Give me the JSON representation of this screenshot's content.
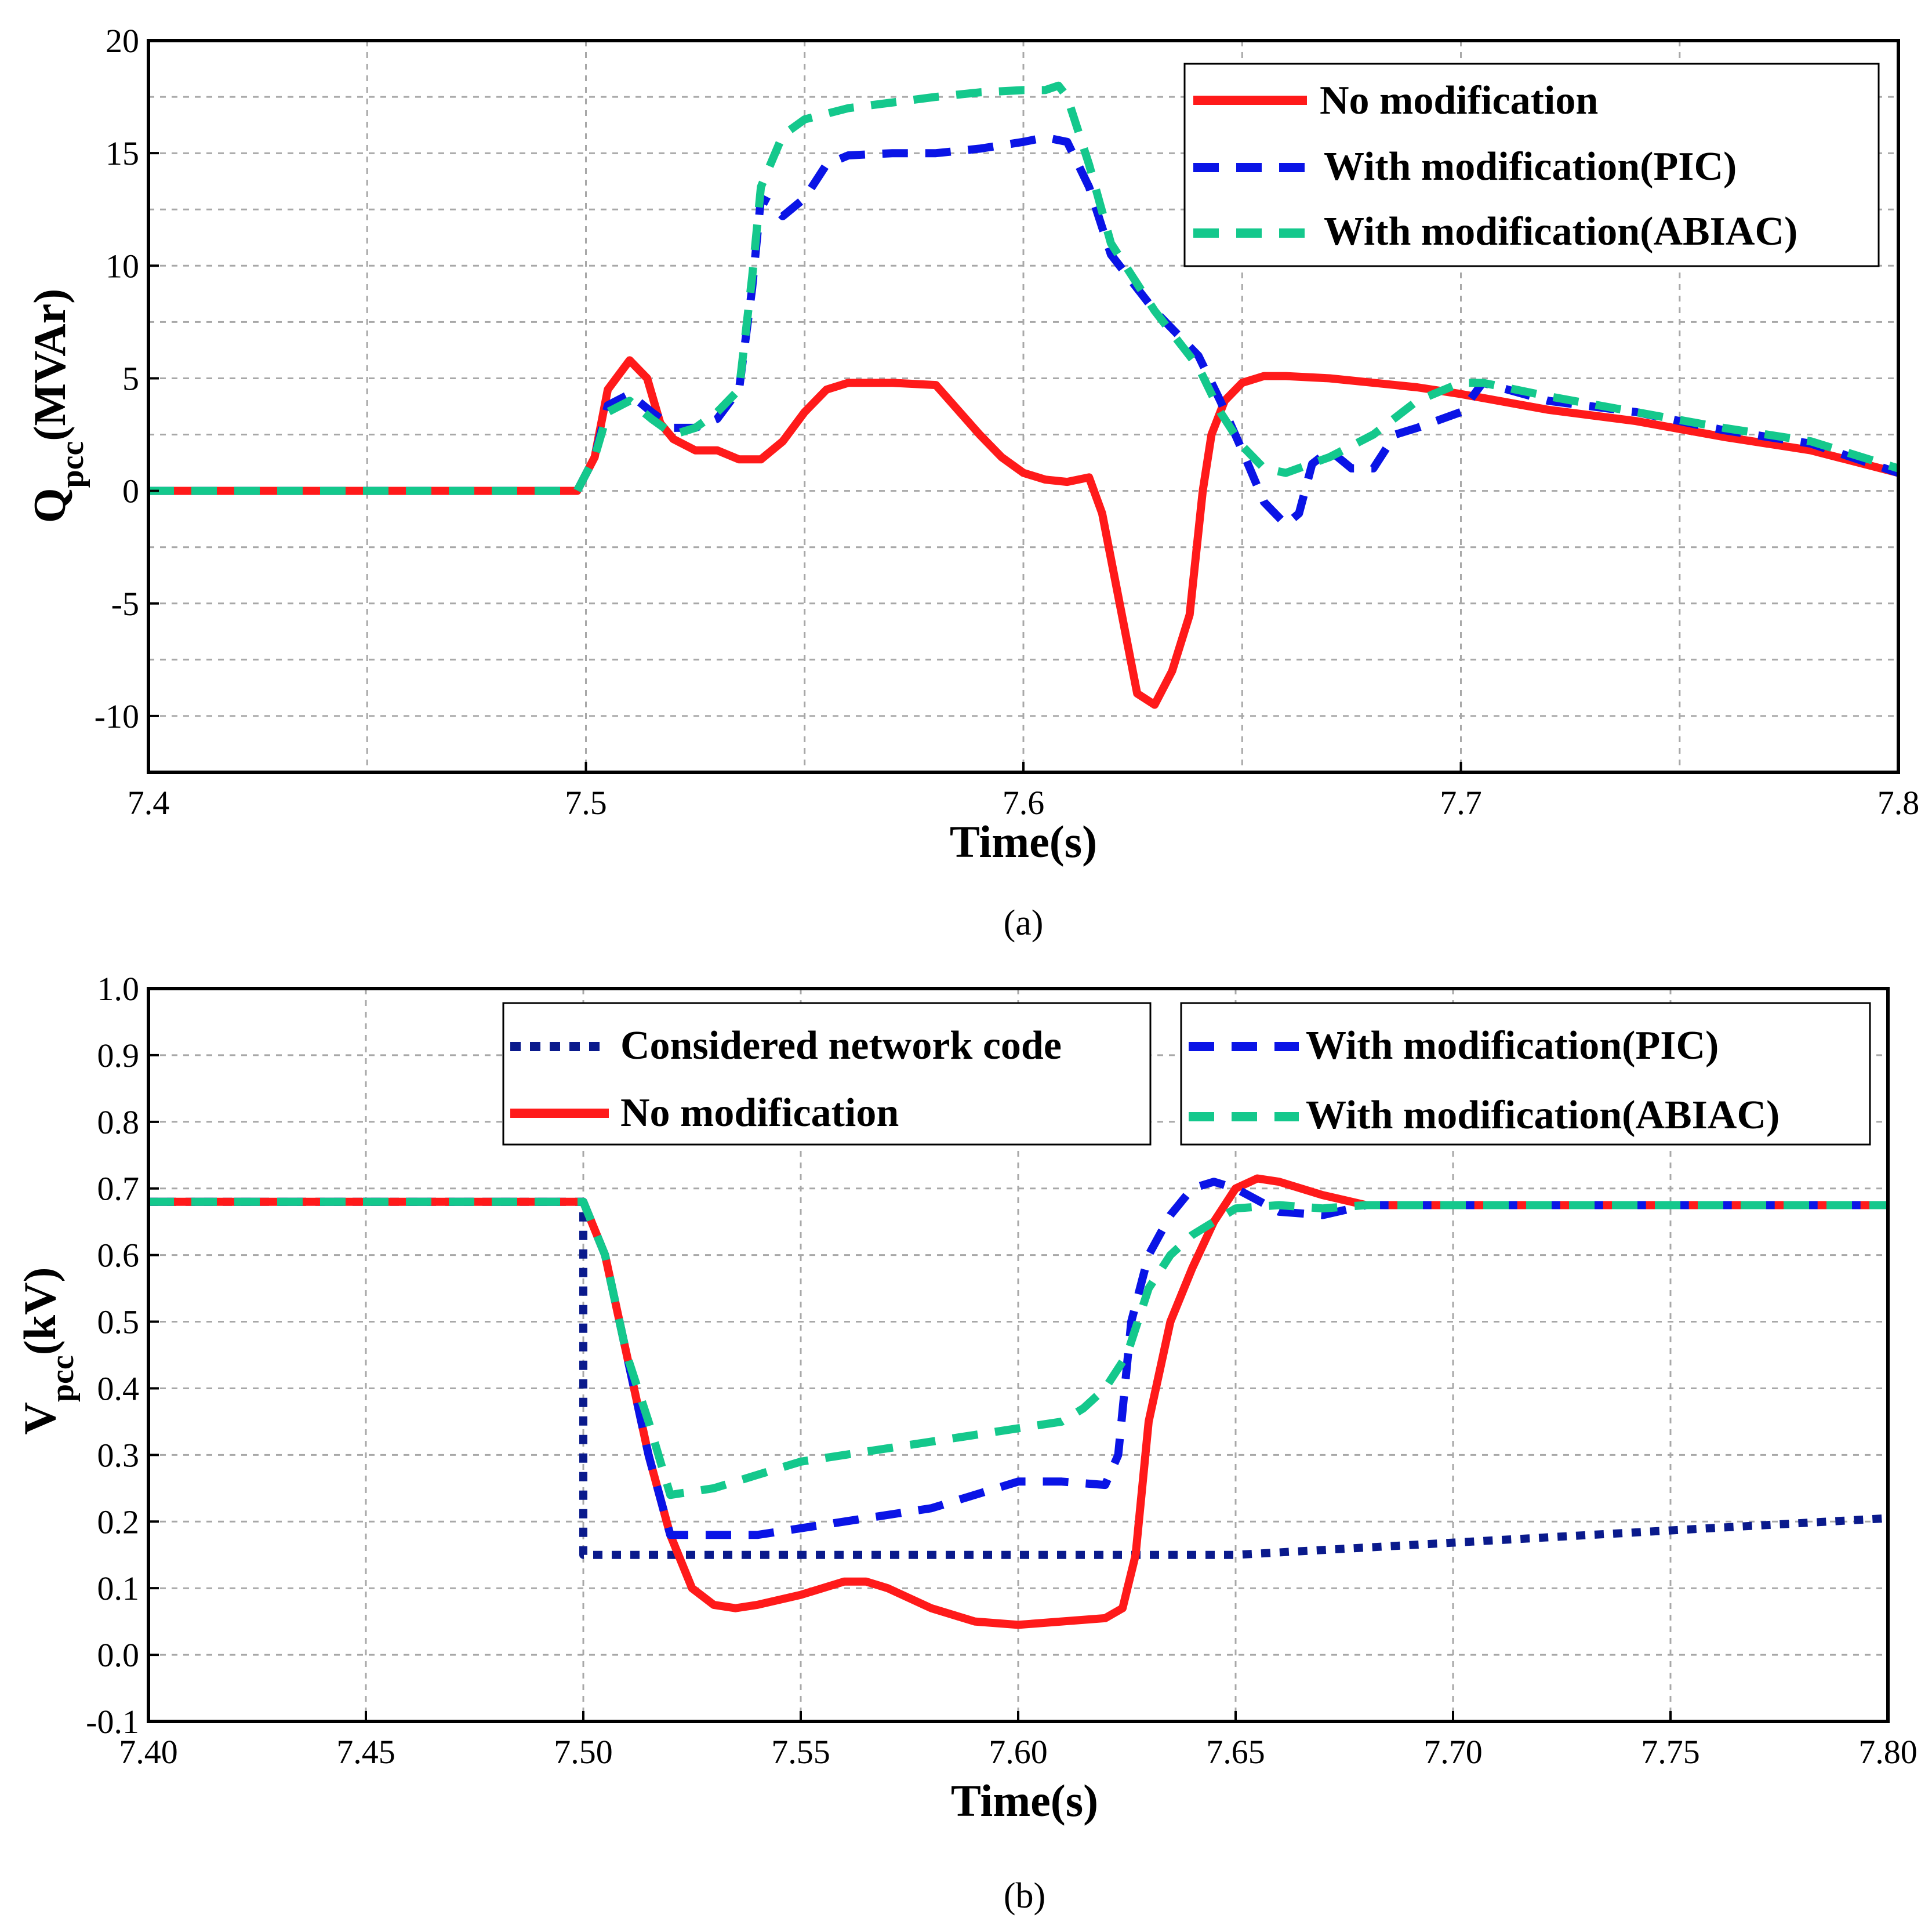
{
  "chart_data": [
    {
      "type": "line",
      "caption": "(a)",
      "xlabel": "Time(s)",
      "ylabel_main": "Q",
      "ylabel_sub": "pcc",
      "ylabel_unit": "(MVAr)",
      "xlim": [
        7.4,
        7.8
      ],
      "ylim": [
        -12.5,
        20
      ],
      "xticks": [
        7.4,
        7.5,
        7.6,
        7.7,
        7.8
      ],
      "xtick_labels": [
        "7.4",
        "7.5",
        "7.6",
        "7.7",
        "7.8"
      ],
      "yticks": [
        -10,
        -5,
        0,
        5,
        10,
        15,
        20
      ],
      "ytick_labels": [
        "-10",
        "-5",
        "0",
        "5",
        "10",
        "15",
        "20"
      ],
      "grid_x": [
        7.45,
        7.5,
        7.55,
        7.6,
        7.65,
        7.7,
        7.75
      ],
      "grid_y": [
        -10,
        -7.5,
        -5,
        -2.5,
        0,
        2.5,
        5,
        7.5,
        10,
        12.5,
        15,
        17.5
      ],
      "legend_position": "top-right",
      "series": [
        {
          "name": "No modification",
          "color": "#ff1a1a",
          "style": "solid",
          "x": [
            7.4,
            7.498,
            7.502,
            7.505,
            7.51,
            7.514,
            7.517,
            7.52,
            7.525,
            7.53,
            7.535,
            7.54,
            7.545,
            7.55,
            7.555,
            7.56,
            7.565,
            7.57,
            7.58,
            7.59,
            7.595,
            7.6,
            7.605,
            7.61,
            7.615,
            7.618,
            7.622,
            7.626,
            7.63,
            7.634,
            7.638,
            7.641,
            7.643,
            7.646,
            7.65,
            7.655,
            7.66,
            7.67,
            7.68,
            7.69,
            7.7,
            7.72,
            7.74,
            7.76,
            7.78,
            7.8
          ],
          "y": [
            0,
            0,
            1.5,
            4.5,
            5.8,
            5.0,
            3.0,
            2.3,
            1.8,
            1.8,
            1.4,
            1.4,
            2.2,
            3.5,
            4.5,
            4.8,
            4.8,
            4.8,
            4.7,
            2.5,
            1.5,
            0.8,
            0.5,
            0.4,
            0.6,
            -1.0,
            -5.0,
            -9.0,
            -9.5,
            -8.0,
            -5.5,
            0.0,
            2.5,
            4.0,
            4.8,
            5.1,
            5.1,
            5.0,
            4.8,
            4.6,
            4.3,
            3.6,
            3.1,
            2.4,
            1.8,
            0.8
          ]
        },
        {
          "name": "With modification(PIC)",
          "color": "#0a14e6",
          "style": "dashed",
          "x": [
            7.4,
            7.498,
            7.502,
            7.505,
            7.51,
            7.515,
            7.52,
            7.525,
            7.53,
            7.535,
            7.538,
            7.54,
            7.542,
            7.545,
            7.55,
            7.555,
            7.56,
            7.57,
            7.58,
            7.59,
            7.6,
            7.605,
            7.61,
            7.615,
            7.62,
            7.63,
            7.64,
            7.645,
            7.65,
            7.655,
            7.66,
            7.663,
            7.666,
            7.67,
            7.675,
            7.68,
            7.685,
            7.69,
            7.7,
            7.705,
            7.72,
            7.74,
            7.76,
            7.78,
            7.8
          ],
          "y": [
            0,
            0,
            1.5,
            3.8,
            4.3,
            3.5,
            2.8,
            2.8,
            3.2,
            4.5,
            9.0,
            13.0,
            12.8,
            12.2,
            13.0,
            14.5,
            14.9,
            15.0,
            15.0,
            15.2,
            15.5,
            15.7,
            15.5,
            13.5,
            10.5,
            8.0,
            6.0,
            4.0,
            1.8,
            -0.5,
            -1.5,
            -1.0,
            1.2,
            1.8,
            1.0,
            1.0,
            2.5,
            2.8,
            3.5,
            4.8,
            4.0,
            3.5,
            2.7,
            2.1,
            0.8
          ]
        },
        {
          "name": "With modification(ABIAC)",
          "color": "#14c88c",
          "style": "dashed",
          "x": [
            7.4,
            7.498,
            7.502,
            7.505,
            7.51,
            7.515,
            7.52,
            7.525,
            7.53,
            7.535,
            7.538,
            7.54,
            7.545,
            7.55,
            7.56,
            7.58,
            7.59,
            7.6,
            7.605,
            7.608,
            7.61,
            7.615,
            7.62,
            7.63,
            7.64,
            7.645,
            7.65,
            7.655,
            7.66,
            7.67,
            7.68,
            7.69,
            7.7,
            7.705,
            7.72,
            7.74,
            7.76,
            7.78,
            7.8
          ],
          "y": [
            0,
            0,
            1.5,
            3.5,
            4.0,
            3.2,
            2.5,
            2.8,
            3.5,
            4.5,
            9.5,
            13.5,
            15.8,
            16.5,
            17.0,
            17.5,
            17.7,
            17.8,
            17.8,
            18.0,
            17.5,
            14.5,
            11.0,
            8.0,
            5.5,
            3.5,
            2.0,
            1.0,
            0.8,
            1.5,
            2.5,
            4.0,
            4.8,
            4.8,
            4.2,
            3.5,
            2.8,
            2.2,
            1.0
          ]
        }
      ]
    },
    {
      "type": "line",
      "caption": "(b)",
      "xlabel": "Time(s)",
      "ylabel_main": "V",
      "ylabel_sub": "pcc",
      "ylabel_unit": "(kV)",
      "xlim": [
        7.4,
        7.8
      ],
      "ylim": [
        -0.1,
        1.0
      ],
      "xticks": [
        7.4,
        7.45,
        7.5,
        7.55,
        7.6,
        7.65,
        7.7,
        7.75,
        7.8
      ],
      "xtick_labels": [
        "7.40",
        "7.45",
        "7.50",
        "7.55",
        "7.60",
        "7.65",
        "7.70",
        "7.75",
        "7.80"
      ],
      "yticks": [
        -0.1,
        0.0,
        0.1,
        0.2,
        0.3,
        0.4,
        0.5,
        0.6,
        0.7,
        0.8,
        0.9,
        1.0
      ],
      "ytick_labels": [
        "-0.1",
        "0.0",
        "0.1",
        "0.2",
        "0.3",
        "0.4",
        "0.5",
        "0.6",
        "0.7",
        "0.8",
        "0.9",
        "1.0"
      ],
      "grid_x": [
        7.45,
        7.5,
        7.55,
        7.6,
        7.65,
        7.7,
        7.75
      ],
      "grid_y": [
        0.0,
        0.1,
        0.2,
        0.3,
        0.4,
        0.5,
        0.6,
        0.7,
        0.8,
        0.9
      ],
      "legend_left_position": "top-left",
      "legend_right_position": "top-right",
      "series": [
        {
          "name": "Considered network code",
          "color": "#0a1a8c",
          "style": "dotted",
          "x": [
            7.4,
            7.5,
            7.5,
            7.65,
            7.8
          ],
          "y": [
            0.68,
            0.68,
            0.15,
            0.15,
            0.205
          ]
        },
        {
          "name": "No modification",
          "color": "#ff1a1a",
          "style": "solid",
          "x": [
            7.4,
            7.5,
            7.505,
            7.51,
            7.515,
            7.52,
            7.525,
            7.53,
            7.535,
            7.54,
            7.55,
            7.56,
            7.565,
            7.57,
            7.58,
            7.59,
            7.6,
            7.61,
            7.62,
            7.624,
            7.627,
            7.63,
            7.635,
            7.64,
            7.645,
            7.65,
            7.655,
            7.66,
            7.665,
            7.67,
            7.68,
            7.7,
            7.8
          ],
          "y": [
            0.68,
            0.68,
            0.6,
            0.45,
            0.3,
            0.18,
            0.1,
            0.075,
            0.07,
            0.075,
            0.09,
            0.11,
            0.11,
            0.1,
            0.07,
            0.05,
            0.045,
            0.05,
            0.055,
            0.07,
            0.15,
            0.35,
            0.5,
            0.58,
            0.65,
            0.7,
            0.715,
            0.71,
            0.7,
            0.69,
            0.675,
            0.675,
            0.675
          ]
        },
        {
          "name": "With modification(PIC)",
          "color": "#0a14e6",
          "style": "dashed",
          "x": [
            7.4,
            7.5,
            7.505,
            7.51,
            7.515,
            7.52,
            7.53,
            7.54,
            7.55,
            7.56,
            7.57,
            7.58,
            7.59,
            7.6,
            7.61,
            7.62,
            7.623,
            7.626,
            7.63,
            7.635,
            7.64,
            7.645,
            7.65,
            7.66,
            7.67,
            7.68,
            7.7,
            7.8
          ],
          "y": [
            0.68,
            0.68,
            0.6,
            0.45,
            0.3,
            0.18,
            0.18,
            0.18,
            0.19,
            0.2,
            0.21,
            0.22,
            0.24,
            0.26,
            0.26,
            0.255,
            0.3,
            0.5,
            0.6,
            0.66,
            0.7,
            0.71,
            0.7,
            0.665,
            0.66,
            0.675,
            0.675,
            0.675
          ]
        },
        {
          "name": "With modification(ABIAC)",
          "color": "#14c88c",
          "style": "dashed",
          "x": [
            7.4,
            7.5,
            7.505,
            7.51,
            7.515,
            7.52,
            7.53,
            7.54,
            7.55,
            7.56,
            7.57,
            7.58,
            7.59,
            7.6,
            7.61,
            7.615,
            7.62,
            7.625,
            7.63,
            7.635,
            7.64,
            7.645,
            7.65,
            7.66,
            7.67,
            7.68,
            7.7,
            7.8
          ],
          "y": [
            0.68,
            0.68,
            0.6,
            0.45,
            0.35,
            0.24,
            0.25,
            0.27,
            0.29,
            0.3,
            0.31,
            0.32,
            0.33,
            0.34,
            0.35,
            0.37,
            0.4,
            0.45,
            0.55,
            0.6,
            0.63,
            0.65,
            0.67,
            0.675,
            0.67,
            0.675,
            0.675,
            0.675
          ]
        }
      ]
    }
  ]
}
